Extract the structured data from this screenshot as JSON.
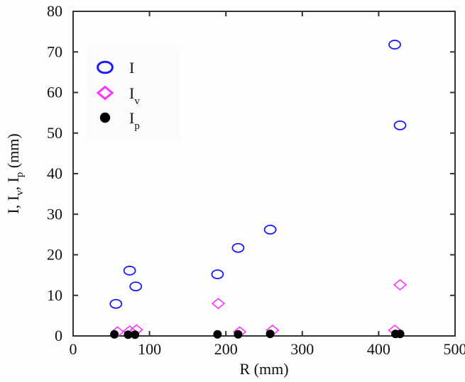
{
  "chart_data": {
    "type": "scatter",
    "title": "",
    "xlabel": "R (mm)",
    "ylabel": "I, I_v, I_p (mm)",
    "xlim": [
      0,
      500
    ],
    "ylim": [
      0,
      80
    ],
    "xticks": [
      0,
      100,
      200,
      300,
      400,
      500
    ],
    "yticks": [
      0,
      10,
      20,
      30,
      40,
      50,
      60,
      70,
      80
    ],
    "grid": false,
    "legend_position": "upper-left",
    "series": [
      {
        "name": "I",
        "marker": "circle-open",
        "color": "#1a1aff",
        "points": [
          {
            "x": 56,
            "y": 7.9
          },
          {
            "x": 74,
            "y": 16.1
          },
          {
            "x": 82,
            "y": 12.2
          },
          {
            "x": 189,
            "y": 15.2
          },
          {
            "x": 216,
            "y": 21.7
          },
          {
            "x": 258,
            "y": 26.2
          },
          {
            "x": 421,
            "y": 71.8
          },
          {
            "x": 428,
            "y": 51.9
          }
        ]
      },
      {
        "name": "I_v",
        "marker": "diamond-open",
        "color": "#ff33ff",
        "points": [
          {
            "x": 58,
            "y": 1.0
          },
          {
            "x": 74,
            "y": 1.2
          },
          {
            "x": 83,
            "y": 1.5
          },
          {
            "x": 190,
            "y": 8.0
          },
          {
            "x": 218,
            "y": 1.0
          },
          {
            "x": 261,
            "y": 1.4
          },
          {
            "x": 421,
            "y": 1.4
          },
          {
            "x": 428,
            "y": 12.6
          }
        ]
      },
      {
        "name": "I_p",
        "marker": "filled-circle",
        "color": "#000000",
        "points": [
          {
            "x": 54,
            "y": 0.4
          },
          {
            "x": 72,
            "y": 0.3
          },
          {
            "x": 81,
            "y": 0.3
          },
          {
            "x": 189,
            "y": 0.4
          },
          {
            "x": 216,
            "y": 0.4
          },
          {
            "x": 258,
            "y": 0.5
          },
          {
            "x": 422,
            "y": 0.5
          },
          {
            "x": 428,
            "y": 0.5
          }
        ]
      }
    ]
  },
  "legend": {
    "items": [
      {
        "label": "I",
        "sub": ""
      },
      {
        "label": "I",
        "sub": "v"
      },
      {
        "label": "I",
        "sub": "p"
      }
    ]
  },
  "axes": {
    "xlabel": "R (mm)",
    "ylabel_parts": [
      "I, I",
      "v",
      ", I",
      "p",
      " (mm)"
    ]
  }
}
